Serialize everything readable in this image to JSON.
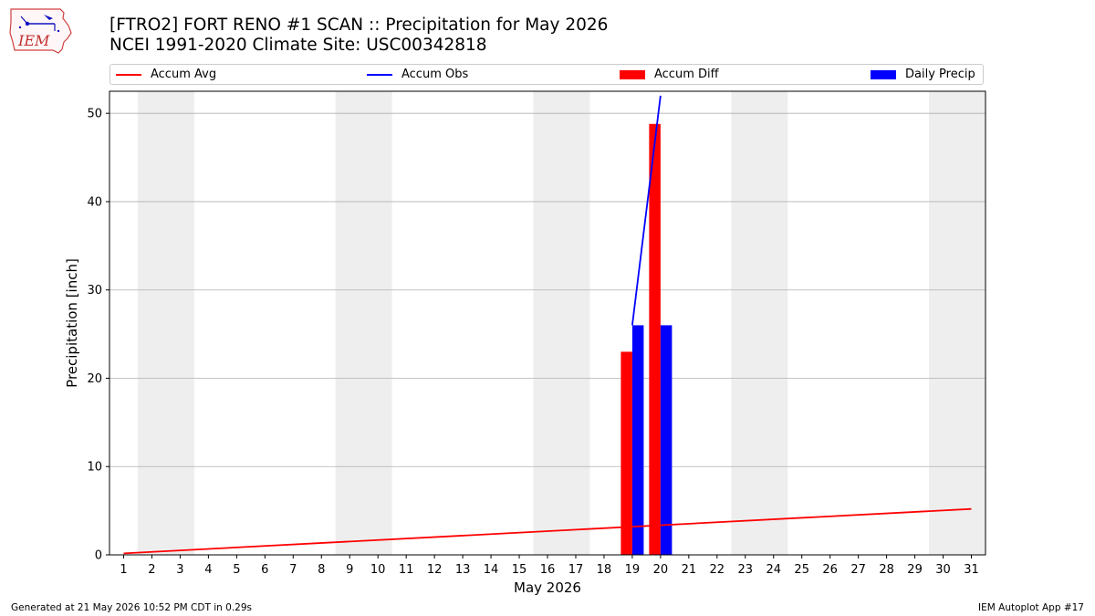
{
  "header": {
    "title": "[FTRO2] FORT RENO #1 SCAN :: Precipitation for May 2026",
    "subtitle": "NCEI 1991-2020 Climate Site: USC00342818"
  },
  "logo": {
    "text": "IEM",
    "icon": "iem-iowa-logo"
  },
  "legend": {
    "items": [
      {
        "label": "Accum Avg",
        "kind": "line",
        "color": "#ff0000"
      },
      {
        "label": "Accum Obs",
        "kind": "line",
        "color": "#0000ff"
      },
      {
        "label": "Accum Diff",
        "kind": "bar",
        "color": "#ff0000"
      },
      {
        "label": "Daily Precip",
        "kind": "bar",
        "color": "#0000ff"
      }
    ]
  },
  "footer": {
    "left": "Generated at 21 May 2026 10:52 PM CDT in 0.29s",
    "right": "IEM Autoplot App #17"
  },
  "chart_data": {
    "type": "bar",
    "xlabel": "May 2026",
    "ylabel": "Precipitation [inch]",
    "xlim": [
      0.5,
      31.5
    ],
    "ylim": [
      0,
      52.5
    ],
    "x_ticks": [
      1,
      2,
      3,
      4,
      5,
      6,
      7,
      8,
      9,
      10,
      11,
      12,
      13,
      14,
      15,
      16,
      17,
      18,
      19,
      20,
      21,
      22,
      23,
      24,
      25,
      26,
      27,
      28,
      29,
      30,
      31
    ],
    "y_ticks": [
      0,
      10,
      20,
      30,
      40,
      50
    ],
    "grid": "horizontal",
    "weekend_shading_days": [
      [
        2,
        3
      ],
      [
        9,
        10
      ],
      [
        16,
        17
      ],
      [
        23,
        24
      ],
      [
        30,
        31
      ]
    ],
    "series": [
      {
        "name": "Accum Avg",
        "type": "line",
        "color": "#ff0000",
        "x": [
          1,
          31
        ],
        "values": [
          0.17,
          5.2
        ]
      },
      {
        "name": "Accum Obs",
        "type": "line",
        "color": "#0000ff",
        "x": [
          19,
          20
        ],
        "values": [
          26.0,
          52.0
        ]
      },
      {
        "name": "Accum Diff",
        "type": "bar",
        "color": "#ff0000",
        "x": [
          19,
          20
        ],
        "values": [
          23.0,
          48.8
        ]
      },
      {
        "name": "Daily Precip",
        "type": "bar",
        "color": "#0000ff",
        "x": [
          19,
          20
        ],
        "values": [
          26.0,
          26.0
        ]
      }
    ]
  }
}
